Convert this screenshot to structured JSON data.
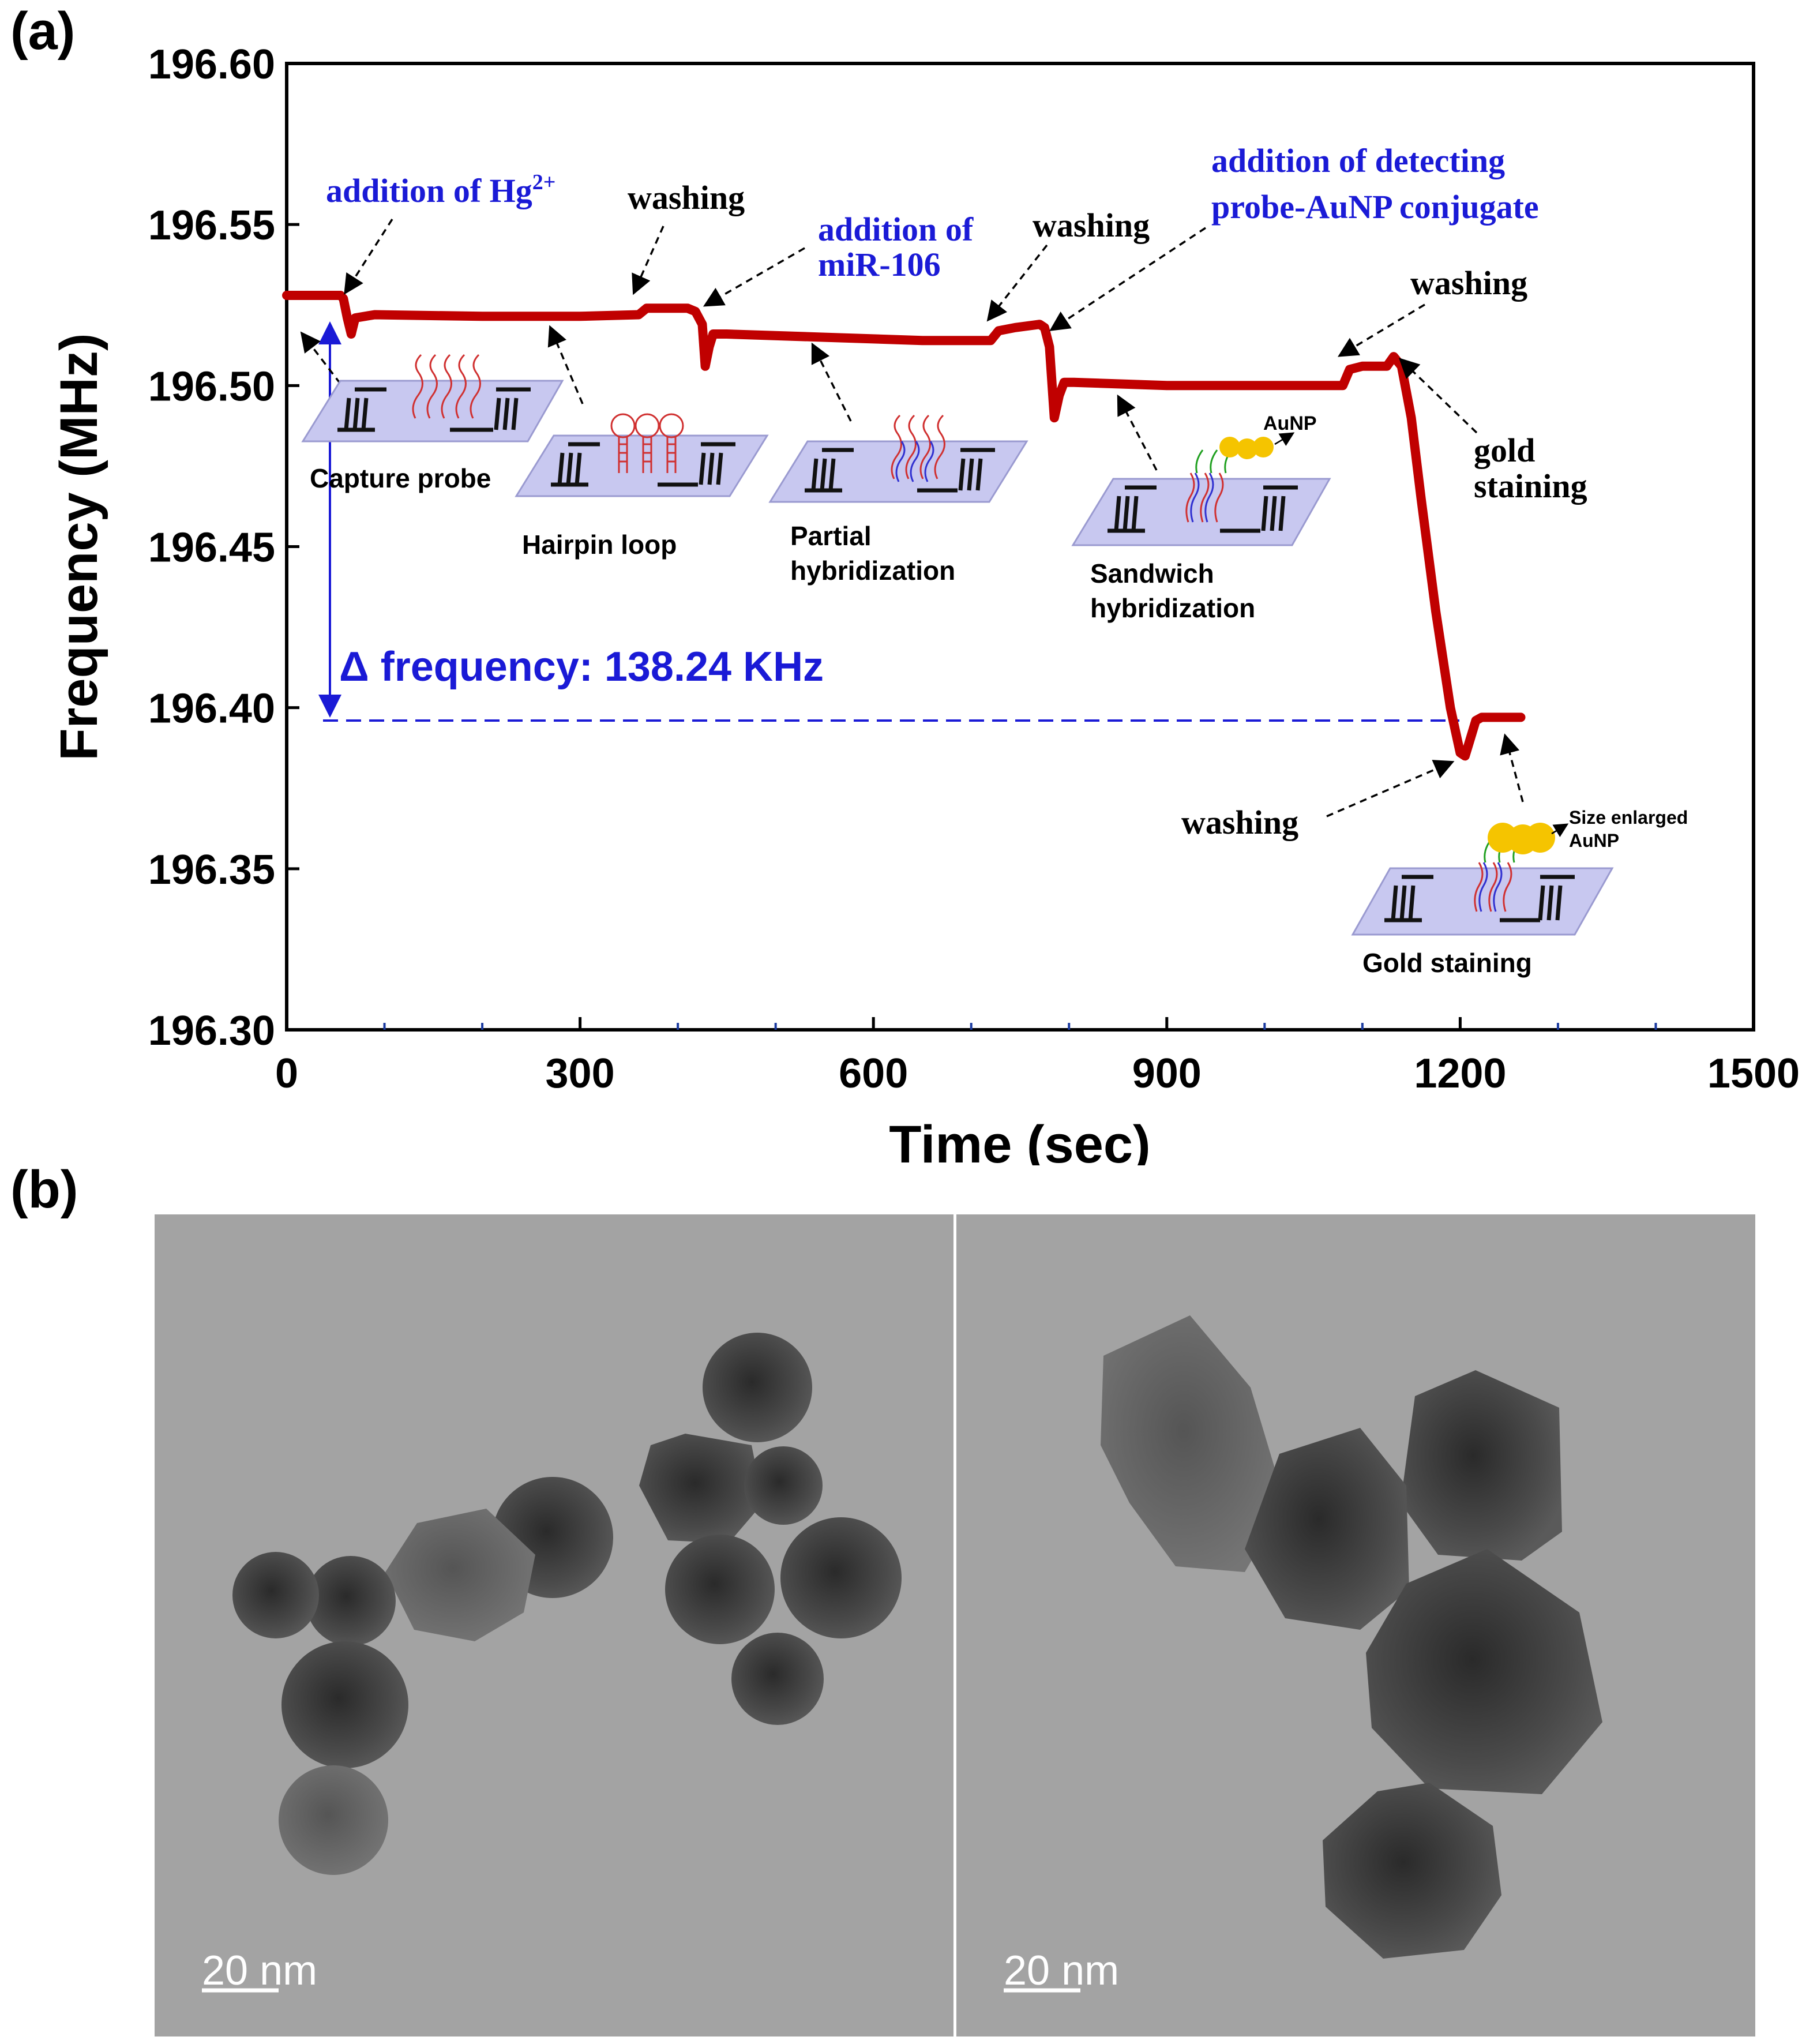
{
  "panels": {
    "a_label": "(a)",
    "b_label": "(b)"
  },
  "chart_data": {
    "type": "line",
    "xlabel": "Time (sec)",
    "ylabel": "Frequency (MHz)",
    "xlim": [
      0,
      1500
    ],
    "ylim": [
      196.3,
      196.6
    ],
    "xticks": [
      0,
      300,
      600,
      900,
      1200,
      1500
    ],
    "yticks": [
      196.3,
      196.35,
      196.4,
      196.45,
      196.5,
      196.55,
      196.6
    ],
    "xtick_labels": [
      "0",
      "300",
      "600",
      "900",
      "1200",
      "1500"
    ],
    "ytick_labels": [
      "196.30",
      "196.35",
      "196.40",
      "196.45",
      "196.50",
      "196.55",
      "196.60"
    ],
    "grid": false,
    "line_color": "#c00000",
    "series": [
      {
        "x": [
          0,
          55,
          58,
          62,
          66,
          70,
          90,
          200,
          300,
          360,
          368,
          380,
          410,
          418,
          425,
          428,
          432,
          436,
          450,
          550,
          650,
          720,
          728,
          745,
          770,
          775,
          780,
          785,
          790,
          795,
          805,
          900,
          1000,
          1080,
          1087,
          1100,
          1125,
          1132,
          1140,
          1150,
          1160,
          1175,
          1190,
          1200,
          1205,
          1210,
          1216,
          1222,
          1230,
          1245,
          1262
        ],
        "y": [
          196.528,
          196.528,
          196.527,
          196.521,
          196.516,
          196.521,
          196.522,
          196.5215,
          196.5215,
          196.522,
          196.524,
          196.524,
          196.524,
          196.523,
          196.519,
          196.506,
          196.512,
          196.516,
          196.516,
          196.515,
          196.514,
          196.514,
          196.517,
          196.518,
          196.519,
          196.518,
          196.512,
          196.49,
          196.497,
          196.501,
          196.501,
          196.5,
          196.5,
          196.5,
          196.505,
          196.506,
          196.506,
          196.509,
          196.506,
          196.49,
          196.465,
          196.43,
          196.4,
          196.386,
          196.385,
          196.39,
          196.396,
          196.397,
          196.397,
          196.397,
          196.397
        ]
      }
    ],
    "annotations": {
      "hg_label": "addition of Hg",
      "hg_sup": "2+",
      "washing": "washing",
      "mir_line1": "addition of",
      "mir_line2": "miR-106",
      "detect_line1": "addition of detecting",
      "detect_line2": "probe-AuNP conjugate",
      "gold_line1": "gold",
      "gold_line2": "staining",
      "delta": "Δ frequency:  138.24  KHz",
      "delta_value_khz": 138.24,
      "baseline_mhz": 196.396
    },
    "schematic_labels": {
      "capture": "Capture probe",
      "hairpin": "Hairpin loop",
      "partial1": "Partial",
      "partial2": "hybridization",
      "sandwich1": "Sandwich",
      "sandwich2": "hybridization",
      "aunp": "AuNP",
      "gold": "Gold staining",
      "enlarged1": "Size enlarged",
      "enlarged2": "AuNP"
    }
  },
  "tem": {
    "left_scale": "20 nm",
    "right_scale": "20 nm"
  },
  "colors": {
    "trace": "#c00000",
    "annotation_blue": "#1a1ad6",
    "electrode_pad": "#c8c8f0",
    "aunp": "#f5c400"
  }
}
